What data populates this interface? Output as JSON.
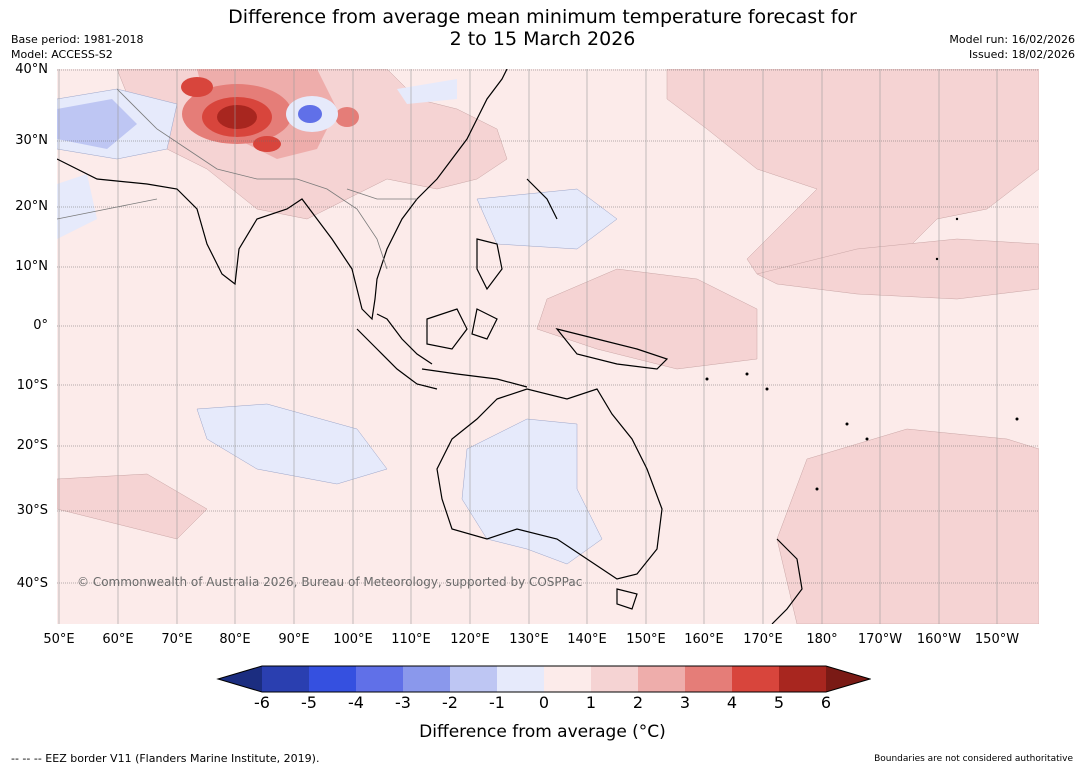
{
  "header": {
    "title_line1": "Difference from average mean minimum temperature forecast for",
    "title_line2": "2 to 15 March 2026",
    "base_period": "Base period: 1981-2018",
    "model": "Model: ACCESS-S2",
    "model_run": "Model run: 16/02/2026",
    "issued": "Issued: 18/02/2026"
  },
  "map": {
    "copyright": "© Commonwealth of Australia 2026, Bureau of Meteorology, supported by COSPPac",
    "lat_labels": [
      "40°N",
      "30°N",
      "20°N",
      "10°N",
      "0°",
      "10°S",
      "20°S",
      "30°S",
      "40°S"
    ],
    "lon_labels": [
      "50°E",
      "60°E",
      "70°E",
      "80°E",
      "90°E",
      "100°E",
      "110°E",
      "120°E",
      "130°E",
      "140°E",
      "150°E",
      "160°E",
      "170°E",
      "180°",
      "170°W",
      "160°W",
      "150°W"
    ],
    "regions": {
      "background": "0 to 1",
      "central_asia_hotspot": "5 to 6",
      "tibet_cold_spot": "-3 to -2",
      "iran_cold_area": "-2 to -1",
      "australia_interior": "-1 to 0",
      "north_pacific": "1 to 2",
      "equatorial_pacific": "1 to 2",
      "south_pacific_east": "1 to 2"
    }
  },
  "colorbar": {
    "tick_labels": [
      "-6",
      "-5",
      "-4",
      "-3",
      "-2",
      "-1",
      "0",
      "1",
      "2",
      "3",
      "4",
      "5",
      "6"
    ],
    "colors": [
      "#1b2d80",
      "#2a3fb0",
      "#3550e0",
      "#6070e8",
      "#8a98ec",
      "#bec6f3",
      "#e6eafb",
      "#fcebea",
      "#f5d3d3",
      "#eeadab",
      "#e57d78",
      "#d8453c",
      "#a8261f",
      "#7a1a15"
    ],
    "title": "Difference from average (°C)"
  },
  "footer": {
    "legend": "--  --  -- EEZ border V11 (Flanders Marine Institute, 2019).",
    "disclaimer": "Boundaries are not considered authoritative"
  }
}
